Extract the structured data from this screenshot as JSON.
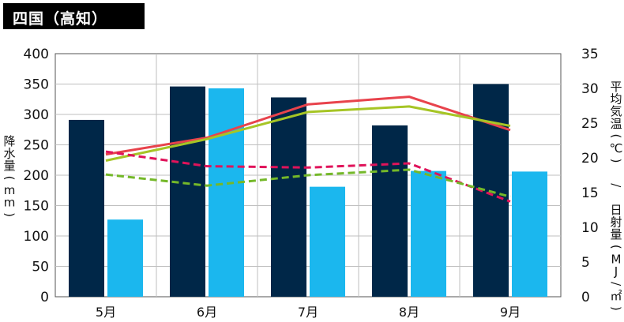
{
  "chart_data": {
    "type": "bar",
    "title": "四国（高知）",
    "categories": [
      "5月",
      "6月",
      "7月",
      "8月",
      "9月"
    ],
    "y_left": {
      "label": "降水量(mm)",
      "min": 0,
      "max": 400,
      "step": 50
    },
    "y_right": {
      "label": "平均気温(℃) / 日射量(MJ/㎡)",
      "min": 0,
      "max": 35,
      "step": 5
    },
    "bar_series": [
      {
        "axis": "left",
        "color": "#002748",
        "values": [
          291,
          346,
          328,
          282,
          350
        ]
      },
      {
        "axis": "left",
        "color": "#1bb7ee",
        "values": [
          127,
          343,
          181,
          207,
          206
        ]
      }
    ],
    "line_series": [
      {
        "axis": "right",
        "color": "#e8434c",
        "dashed": false,
        "values": [
          20.5,
          22.9,
          27.7,
          28.8,
          24.0
        ]
      },
      {
        "axis": "right",
        "color": "#a6c525",
        "dashed": false,
        "values": [
          19.6,
          22.7,
          26.6,
          27.4,
          24.6
        ]
      },
      {
        "axis": "right",
        "color": "#e0135a",
        "dashed": true,
        "values": [
          20.9,
          18.8,
          18.6,
          19.2,
          13.7
        ]
      },
      {
        "axis": "right",
        "color": "#74b829",
        "dashed": true,
        "values": [
          17.6,
          16.0,
          17.5,
          18.3,
          14.4
        ]
      }
    ],
    "grid": true
  }
}
